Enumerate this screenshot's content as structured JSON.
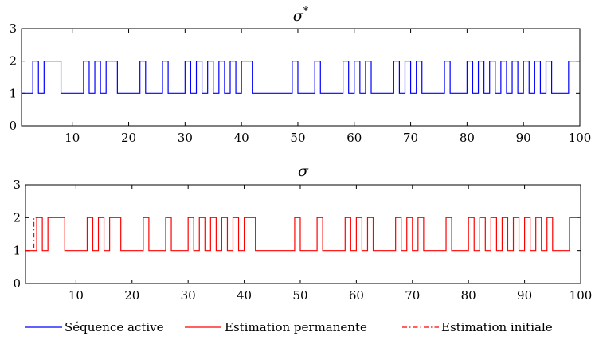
{
  "chart_data": [
    {
      "type": "line",
      "step": true,
      "title": "σ",
      "title_superscript": "*",
      "xlim": [
        1,
        100
      ],
      "ylim": [
        0,
        3
      ],
      "x_ticks": [
        10,
        20,
        30,
        40,
        50,
        60,
        70,
        80,
        90,
        100
      ],
      "y_ticks": [
        0,
        1,
        2,
        3
      ],
      "series": [
        {
          "name": "Séquence active",
          "color": "#0000ff",
          "style": "solid",
          "points": [
            [
              1,
              1
            ],
            [
              3,
              1
            ],
            [
              3,
              2
            ],
            [
              4,
              2
            ],
            [
              4,
              1
            ],
            [
              5,
              1
            ],
            [
              5,
              2
            ],
            [
              8,
              2
            ],
            [
              8,
              1
            ],
            [
              12,
              1
            ],
            [
              12,
              2
            ],
            [
              13,
              2
            ],
            [
              13,
              1
            ],
            [
              14,
              1
            ],
            [
              14,
              2
            ],
            [
              15,
              2
            ],
            [
              15,
              1
            ],
            [
              16,
              1
            ],
            [
              16,
              2
            ],
            [
              18,
              2
            ],
            [
              18,
              1
            ],
            [
              22,
              1
            ],
            [
              22,
              2
            ],
            [
              23,
              2
            ],
            [
              23,
              1
            ],
            [
              26,
              1
            ],
            [
              26,
              2
            ],
            [
              27,
              2
            ],
            [
              27,
              1
            ],
            [
              30,
              1
            ],
            [
              30,
              2
            ],
            [
              31,
              2
            ],
            [
              31,
              1
            ],
            [
              32,
              1
            ],
            [
              32,
              2
            ],
            [
              33,
              2
            ],
            [
              33,
              1
            ],
            [
              34,
              1
            ],
            [
              34,
              2
            ],
            [
              35,
              2
            ],
            [
              35,
              1
            ],
            [
              36,
              1
            ],
            [
              36,
              2
            ],
            [
              37,
              2
            ],
            [
              37,
              1
            ],
            [
              38,
              1
            ],
            [
              38,
              2
            ],
            [
              39,
              2
            ],
            [
              39,
              1
            ],
            [
              40,
              1
            ],
            [
              40,
              2
            ],
            [
              42,
              2
            ],
            [
              42,
              1
            ],
            [
              49,
              1
            ],
            [
              49,
              2
            ],
            [
              50,
              2
            ],
            [
              50,
              1
            ],
            [
              53,
              1
            ],
            [
              53,
              2
            ],
            [
              54,
              2
            ],
            [
              54,
              1
            ],
            [
              58,
              1
            ],
            [
              58,
              2
            ],
            [
              59,
              2
            ],
            [
              59,
              1
            ],
            [
              60,
              1
            ],
            [
              60,
              2
            ],
            [
              61,
              2
            ],
            [
              61,
              1
            ],
            [
              62,
              1
            ],
            [
              62,
              2
            ],
            [
              63,
              2
            ],
            [
              63,
              1
            ],
            [
              67,
              1
            ],
            [
              67,
              2
            ],
            [
              68,
              2
            ],
            [
              68,
              1
            ],
            [
              69,
              1
            ],
            [
              69,
              2
            ],
            [
              70,
              2
            ],
            [
              70,
              1
            ],
            [
              71,
              1
            ],
            [
              71,
              2
            ],
            [
              72,
              2
            ],
            [
              72,
              1
            ],
            [
              76,
              1
            ],
            [
              76,
              2
            ],
            [
              77,
              2
            ],
            [
              77,
              1
            ],
            [
              80,
              1
            ],
            [
              80,
              2
            ],
            [
              81,
              2
            ],
            [
              81,
              1
            ],
            [
              82,
              1
            ],
            [
              82,
              2
            ],
            [
              83,
              2
            ],
            [
              83,
              1
            ],
            [
              84,
              1
            ],
            [
              84,
              2
            ],
            [
              85,
              2
            ],
            [
              85,
              1
            ],
            [
              86,
              1
            ],
            [
              86,
              2
            ],
            [
              87,
              2
            ],
            [
              87,
              1
            ],
            [
              88,
              1
            ],
            [
              88,
              2
            ],
            [
              89,
              2
            ],
            [
              89,
              1
            ],
            [
              90,
              1
            ],
            [
              90,
              2
            ],
            [
              91,
              2
            ],
            [
              91,
              1
            ],
            [
              92,
              1
            ],
            [
              92,
              2
            ],
            [
              93,
              2
            ],
            [
              93,
              1
            ],
            [
              94,
              1
            ],
            [
              94,
              2
            ],
            [
              95,
              2
            ],
            [
              95,
              1
            ],
            [
              98,
              1
            ],
            [
              98,
              2
            ],
            [
              100,
              2
            ]
          ]
        }
      ]
    },
    {
      "type": "line",
      "step": true,
      "title": "σ",
      "title_superscript": "",
      "xlim": [
        1,
        100
      ],
      "ylim": [
        0,
        3
      ],
      "x_ticks": [
        10,
        20,
        30,
        40,
        50,
        60,
        70,
        80,
        90,
        100
      ],
      "y_ticks": [
        0,
        1,
        2,
        3
      ],
      "series": [
        {
          "name": "Estimation permanente",
          "color": "#ff0000",
          "style": "solid",
          "points": [
            [
              1,
              1
            ],
            [
              3,
              1
            ],
            [
              3,
              2
            ],
            [
              4,
              2
            ],
            [
              4,
              1
            ],
            [
              5,
              1
            ],
            [
              5,
              2
            ],
            [
              8,
              2
            ],
            [
              8,
              1
            ],
            [
              12,
              1
            ],
            [
              12,
              2
            ],
            [
              13,
              2
            ],
            [
              13,
              1
            ],
            [
              14,
              1
            ],
            [
              14,
              2
            ],
            [
              15,
              2
            ],
            [
              15,
              1
            ],
            [
              16,
              1
            ],
            [
              16,
              2
            ],
            [
              18,
              2
            ],
            [
              18,
              1
            ],
            [
              22,
              1
            ],
            [
              22,
              2
            ],
            [
              23,
              2
            ],
            [
              23,
              1
            ],
            [
              26,
              1
            ],
            [
              26,
              2
            ],
            [
              27,
              2
            ],
            [
              27,
              1
            ],
            [
              30,
              1
            ],
            [
              30,
              2
            ],
            [
              31,
              2
            ],
            [
              31,
              1
            ],
            [
              32,
              1
            ],
            [
              32,
              2
            ],
            [
              33,
              2
            ],
            [
              33,
              1
            ],
            [
              34,
              1
            ],
            [
              34,
              2
            ],
            [
              35,
              2
            ],
            [
              35,
              1
            ],
            [
              36,
              1
            ],
            [
              36,
              2
            ],
            [
              37,
              2
            ],
            [
              37,
              1
            ],
            [
              38,
              1
            ],
            [
              38,
              2
            ],
            [
              39,
              2
            ],
            [
              39,
              1
            ],
            [
              40,
              1
            ],
            [
              40,
              2
            ],
            [
              42,
              2
            ],
            [
              42,
              1
            ],
            [
              49,
              1
            ],
            [
              49,
              2
            ],
            [
              50,
              2
            ],
            [
              50,
              1
            ],
            [
              53,
              1
            ],
            [
              53,
              2
            ],
            [
              54,
              2
            ],
            [
              54,
              1
            ],
            [
              58,
              1
            ],
            [
              58,
              2
            ],
            [
              59,
              2
            ],
            [
              59,
              1
            ],
            [
              60,
              1
            ],
            [
              60,
              2
            ],
            [
              61,
              2
            ],
            [
              61,
              1
            ],
            [
              62,
              1
            ],
            [
              62,
              2
            ],
            [
              63,
              2
            ],
            [
              63,
              1
            ],
            [
              67,
              1
            ],
            [
              67,
              2
            ],
            [
              68,
              2
            ],
            [
              68,
              1
            ],
            [
              69,
              1
            ],
            [
              69,
              2
            ],
            [
              70,
              2
            ],
            [
              70,
              1
            ],
            [
              71,
              1
            ],
            [
              71,
              2
            ],
            [
              72,
              2
            ],
            [
              72,
              1
            ],
            [
              76,
              1
            ],
            [
              76,
              2
            ],
            [
              77,
              2
            ],
            [
              77,
              1
            ],
            [
              80,
              1
            ],
            [
              80,
              2
            ],
            [
              81,
              2
            ],
            [
              81,
              1
            ],
            [
              82,
              1
            ],
            [
              82,
              2
            ],
            [
              83,
              2
            ],
            [
              83,
              1
            ],
            [
              84,
              1
            ],
            [
              84,
              2
            ],
            [
              85,
              2
            ],
            [
              85,
              1
            ],
            [
              86,
              1
            ],
            [
              86,
              2
            ],
            [
              87,
              2
            ],
            [
              87,
              1
            ],
            [
              88,
              1
            ],
            [
              88,
              2
            ],
            [
              89,
              2
            ],
            [
              89,
              1
            ],
            [
              90,
              1
            ],
            [
              90,
              2
            ],
            [
              91,
              2
            ],
            [
              91,
              1
            ],
            [
              92,
              1
            ],
            [
              92,
              2
            ],
            [
              93,
              2
            ],
            [
              93,
              1
            ],
            [
              94,
              1
            ],
            [
              94,
              2
            ],
            [
              95,
              2
            ],
            [
              95,
              1
            ],
            [
              98,
              1
            ],
            [
              98,
              2
            ],
            [
              100,
              2
            ]
          ]
        },
        {
          "name": "Estimation initiale",
          "color": "#ff0000",
          "style": "dashdot",
          "points": [
            [
              1,
              1
            ],
            [
              2.5,
              1
            ],
            [
              2.5,
              2
            ],
            [
              3,
              2
            ]
          ]
        }
      ]
    }
  ],
  "legend": {
    "placement": "bottom",
    "entries": [
      {
        "label": "Séquence active",
        "color": "#0000ff",
        "style": "solid"
      },
      {
        "label": "Estimation permanente",
        "color": "#ff0000",
        "style": "solid"
      },
      {
        "label": "Estimation initiale",
        "color": "#ff0000",
        "style": "dashdot"
      }
    ]
  }
}
